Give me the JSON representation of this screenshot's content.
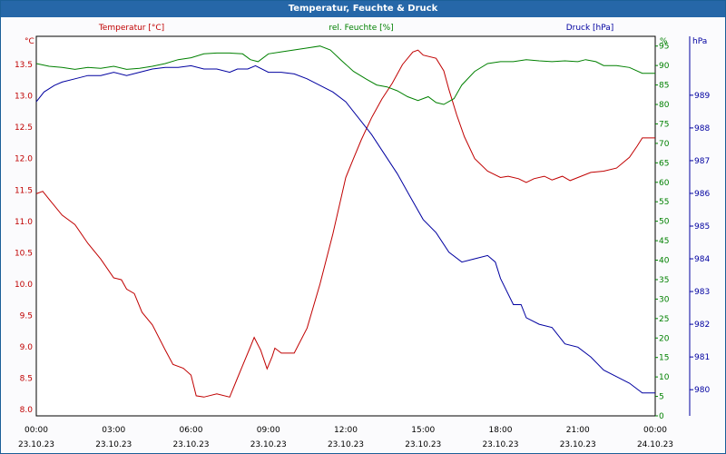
{
  "window": {
    "title": "Temperatur, Feuchte & Druck"
  },
  "chart_data": {
    "type": "line",
    "title": "Temperatur, Feuchte & Druck",
    "x_ticks": [
      {
        "time": "00:00",
        "date": "23.10.23"
      },
      {
        "time": "03:00",
        "date": "23.10.23"
      },
      {
        "time": "06:00",
        "date": "23.10.23"
      },
      {
        "time": "09:00",
        "date": "23.10.23"
      },
      {
        "time": "12:00",
        "date": "23.10.23"
      },
      {
        "time": "15:00",
        "date": "23.10.23"
      },
      {
        "time": "18:00",
        "date": "23.10.23"
      },
      {
        "time": "21:00",
        "date": "23.10.23"
      },
      {
        "time": "00:00",
        "date": "24.10.23"
      }
    ],
    "xlim_hours": [
      0,
      24
    ],
    "grid": true,
    "axes": {
      "temperature": {
        "label": "Temperatur [°C]",
        "unit": "°C",
        "ylim": [
          7.9,
          13.95
        ],
        "ticks": [
          "13.5",
          "13.0",
          "12.5",
          "12.0",
          "11.5",
          "11.0",
          "10.5",
          "10.0",
          "9.5",
          "9.0",
          "8.5",
          "8.0"
        ],
        "color": "#c00000"
      },
      "humidity": {
        "label": "rel. Feuchte [%]",
        "unit": "%",
        "ylim": [
          0,
          97.5
        ],
        "ticks": [
          "95",
          "90",
          "85",
          "80",
          "75",
          "70",
          "65",
          "60",
          "55",
          "50",
          "45",
          "40",
          "35",
          "30",
          "25",
          "20",
          "15",
          "10",
          "5",
          "0"
        ],
        "color": "#008000"
      },
      "pressure": {
        "label": "Druck [hPa]",
        "unit": "hPa",
        "ylim": [
          979.2,
          990.8
        ],
        "ticks": [
          "989",
          "988",
          "987",
          "986",
          "985",
          "984",
          "983",
          "982",
          "981",
          "980"
        ],
        "color": "#0000a0"
      }
    },
    "series": [
      {
        "name": "Temperatur [°C]",
        "axis": "temperature",
        "color": "#c00000",
        "points": [
          [
            0,
            11.44
          ],
          [
            0.25,
            11.48
          ],
          [
            0.5,
            11.35
          ],
          [
            1,
            11.1
          ],
          [
            1.5,
            10.95
          ],
          [
            2,
            10.65
          ],
          [
            2.5,
            10.4
          ],
          [
            3,
            10.1
          ],
          [
            3.3,
            10.07
          ],
          [
            3.5,
            9.92
          ],
          [
            3.8,
            9.85
          ],
          [
            4.1,
            9.55
          ],
          [
            4.5,
            9.35
          ],
          [
            5,
            8.95
          ],
          [
            5.3,
            8.72
          ],
          [
            5.7,
            8.66
          ],
          [
            6,
            8.55
          ],
          [
            6.2,
            8.22
          ],
          [
            6.5,
            8.2
          ],
          [
            7,
            8.25
          ],
          [
            7.5,
            8.2
          ],
          [
            7.8,
            8.5
          ],
          [
            8,
            8.7
          ],
          [
            8.3,
            9.0
          ],
          [
            8.45,
            9.15
          ],
          [
            8.7,
            8.95
          ],
          [
            8.95,
            8.65
          ],
          [
            9.15,
            8.85
          ],
          [
            9.25,
            8.98
          ],
          [
            9.5,
            8.9
          ],
          [
            10,
            8.9
          ],
          [
            10.5,
            9.3
          ],
          [
            11,
            10.0
          ],
          [
            11.5,
            10.8
          ],
          [
            12,
            11.7
          ],
          [
            12.3,
            12.0
          ],
          [
            12.6,
            12.3
          ],
          [
            13,
            12.65
          ],
          [
            13.4,
            12.95
          ],
          [
            13.8,
            13.2
          ],
          [
            14.2,
            13.5
          ],
          [
            14.6,
            13.7
          ],
          [
            14.8,
            13.73
          ],
          [
            15,
            13.65
          ],
          [
            15.5,
            13.6
          ],
          [
            15.8,
            13.4
          ],
          [
            16,
            13.1
          ],
          [
            16.3,
            12.7
          ],
          [
            16.6,
            12.35
          ],
          [
            17,
            12.0
          ],
          [
            17.5,
            11.8
          ],
          [
            18,
            11.7
          ],
          [
            18.3,
            11.72
          ],
          [
            18.7,
            11.68
          ],
          [
            19,
            11.62
          ],
          [
            19.3,
            11.68
          ],
          [
            19.7,
            11.72
          ],
          [
            20,
            11.66
          ],
          [
            20.4,
            11.72
          ],
          [
            20.7,
            11.65
          ],
          [
            21,
            11.7
          ],
          [
            21.5,
            11.78
          ],
          [
            22,
            11.8
          ],
          [
            22.5,
            11.85
          ],
          [
            23,
            12.02
          ],
          [
            23.3,
            12.2
          ],
          [
            23.5,
            12.33
          ],
          [
            24,
            12.33
          ]
        ]
      },
      {
        "name": "rel. Feuchte [%]",
        "axis": "humidity",
        "color": "#008000",
        "points": [
          [
            0,
            90.5
          ],
          [
            0.5,
            89.8
          ],
          [
            1,
            89.5
          ],
          [
            1.5,
            89.0
          ],
          [
            2,
            89.5
          ],
          [
            2.5,
            89.3
          ],
          [
            3,
            89.8
          ],
          [
            3.5,
            89.0
          ],
          [
            4,
            89.3
          ],
          [
            4.5,
            89.8
          ],
          [
            5,
            90.5
          ],
          [
            5.5,
            91.5
          ],
          [
            6,
            92.0
          ],
          [
            6.5,
            93.0
          ],
          [
            7,
            93.2
          ],
          [
            7.5,
            93.2
          ],
          [
            8,
            93.0
          ],
          [
            8.3,
            91.5
          ],
          [
            8.6,
            91.0
          ],
          [
            9,
            93.0
          ],
          [
            9.5,
            93.5
          ],
          [
            10,
            94.0
          ],
          [
            10.5,
            94.5
          ],
          [
            11,
            95.0
          ],
          [
            11.4,
            94.0
          ],
          [
            11.8,
            91.5
          ],
          [
            12.3,
            88.5
          ],
          [
            12.8,
            86.5
          ],
          [
            13.2,
            85.0
          ],
          [
            13.6,
            84.5
          ],
          [
            14,
            83.5
          ],
          [
            14.4,
            82.0
          ],
          [
            14.8,
            81.0
          ],
          [
            15.2,
            82.0
          ],
          [
            15.5,
            80.5
          ],
          [
            15.8,
            80.0
          ],
          [
            16.2,
            81.5
          ],
          [
            16.5,
            85.0
          ],
          [
            17,
            88.5
          ],
          [
            17.5,
            90.5
          ],
          [
            18,
            91.0
          ],
          [
            18.5,
            91.0
          ],
          [
            19,
            91.5
          ],
          [
            19.5,
            91.2
          ],
          [
            20,
            91.0
          ],
          [
            20.5,
            91.2
          ],
          [
            21,
            91.0
          ],
          [
            21.3,
            91.5
          ],
          [
            21.7,
            91.0
          ],
          [
            22,
            90.0
          ],
          [
            22.5,
            90.0
          ],
          [
            23,
            89.5
          ],
          [
            23.5,
            88.0
          ],
          [
            24,
            88.0
          ]
        ]
      },
      {
        "name": "Druck [hPa]",
        "axis": "pressure",
        "color": "#0000a0",
        "points": [
          [
            0,
            988.8
          ],
          [
            0.3,
            989.1
          ],
          [
            0.7,
            989.3
          ],
          [
            1,
            989.4
          ],
          [
            1.5,
            989.5
          ],
          [
            2,
            989.6
          ],
          [
            2.5,
            989.6
          ],
          [
            3,
            989.7
          ],
          [
            3.5,
            989.6
          ],
          [
            4,
            989.7
          ],
          [
            4.5,
            989.8
          ],
          [
            5,
            989.85
          ],
          [
            5.5,
            989.85
          ],
          [
            6,
            989.9
          ],
          [
            6.5,
            989.8
          ],
          [
            7,
            989.8
          ],
          [
            7.5,
            989.7
          ],
          [
            7.8,
            989.8
          ],
          [
            8.2,
            989.8
          ],
          [
            8.5,
            989.9
          ],
          [
            9,
            989.7
          ],
          [
            9.5,
            989.7
          ],
          [
            10,
            989.65
          ],
          [
            10.5,
            989.5
          ],
          [
            11,
            989.3
          ],
          [
            11.5,
            989.1
          ],
          [
            12,
            988.8
          ],
          [
            12.5,
            988.3
          ],
          [
            13,
            987.8
          ],
          [
            13.5,
            987.2
          ],
          [
            14,
            986.6
          ],
          [
            14.5,
            985.9
          ],
          [
            15,
            985.2
          ],
          [
            15.5,
            984.8
          ],
          [
            16,
            984.2
          ],
          [
            16.5,
            983.9
          ],
          [
            17,
            984.0
          ],
          [
            17.5,
            984.1
          ],
          [
            17.8,
            983.9
          ],
          [
            18,
            983.4
          ],
          [
            18.5,
            982.6
          ],
          [
            18.8,
            982.6
          ],
          [
            19,
            982.2
          ],
          [
            19.5,
            982.0
          ],
          [
            20,
            981.9
          ],
          [
            20.5,
            981.4
          ],
          [
            21,
            981.3
          ],
          [
            21.5,
            981.0
          ],
          [
            22,
            980.6
          ],
          [
            22.5,
            980.4
          ],
          [
            23,
            980.2
          ],
          [
            23.5,
            979.9
          ],
          [
            24,
            979.9
          ]
        ]
      }
    ]
  }
}
